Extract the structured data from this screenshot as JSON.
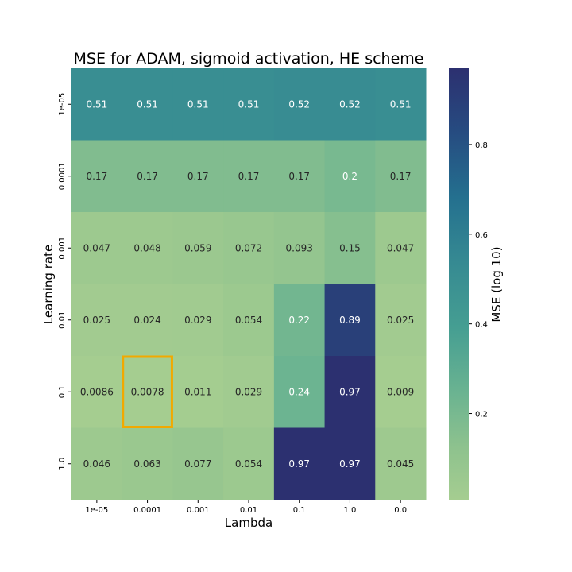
{
  "chart_data": {
    "type": "heatmap",
    "title": "MSE for ADAM, sigmoid activation, HE scheme",
    "xlabel": "Lambda",
    "ylabel": "Learning rate",
    "x_categories": [
      "1e-05",
      "0.0001",
      "0.001",
      "0.01",
      "0.1",
      "1.0",
      "0.0"
    ],
    "y_categories": [
      "1e-05",
      "0.0001",
      "0.001",
      "0.01",
      "0.1",
      "1.0"
    ],
    "values": [
      [
        0.51,
        0.51,
        0.51,
        0.51,
        0.52,
        0.52,
        0.51
      ],
      [
        0.17,
        0.17,
        0.17,
        0.17,
        0.17,
        0.2,
        0.17
      ],
      [
        0.047,
        0.048,
        0.059,
        0.072,
        0.093,
        0.15,
        0.047
      ],
      [
        0.025,
        0.024,
        0.029,
        0.054,
        0.22,
        0.89,
        0.025
      ],
      [
        0.0086,
        0.0078,
        0.011,
        0.029,
        0.24,
        0.97,
        0.009
      ],
      [
        0.046,
        0.063,
        0.077,
        0.054,
        0.97,
        0.97,
        0.045
      ]
    ],
    "value_labels": [
      [
        "0.51",
        "0.51",
        "0.51",
        "0.51",
        "0.52",
        "0.52",
        "0.51"
      ],
      [
        "0.17",
        "0.17",
        "0.17",
        "0.17",
        "0.17",
        "0.2",
        "0.17"
      ],
      [
        "0.047",
        "0.048",
        "0.059",
        "0.072",
        "0.093",
        "0.15",
        "0.047"
      ],
      [
        "0.025",
        "0.024",
        "0.029",
        "0.054",
        "0.22",
        "0.89",
        "0.025"
      ],
      [
        "0.0086",
        "0.0078",
        "0.011",
        "0.029",
        "0.24",
        "0.97",
        "0.009"
      ],
      [
        "0.046",
        "0.063",
        "0.077",
        "0.054",
        "0.97",
        "0.97",
        "0.045"
      ]
    ],
    "highlight_cell": {
      "row": 4,
      "col": 1,
      "color": "#f2a900"
    },
    "colorbar": {
      "label": "MSE (log 10)",
      "range": [
        0.0078,
        0.97
      ],
      "ticks": [
        0.2,
        0.4,
        0.6,
        0.8
      ],
      "tick_labels": [
        "0.2",
        "0.4",
        "0.6",
        "0.8"
      ]
    },
    "colormap": "crest",
    "grid": false
  }
}
